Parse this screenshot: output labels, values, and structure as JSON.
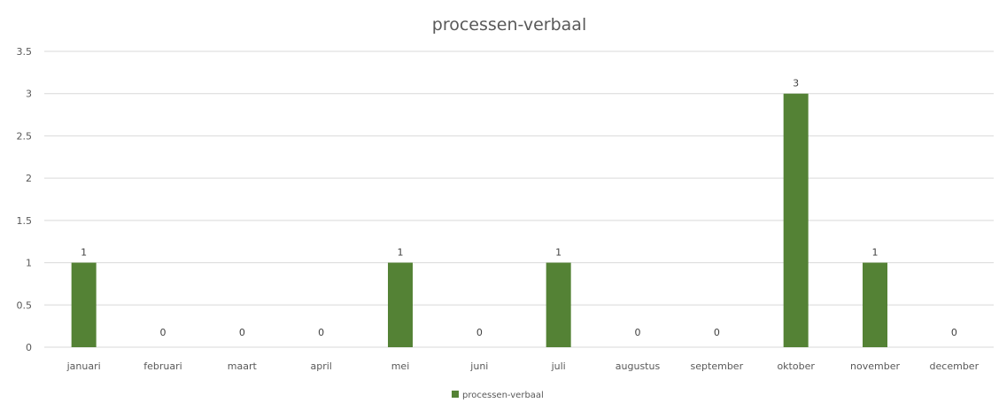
{
  "chart_data": {
    "type": "bar",
    "title": "processen-verbaal",
    "categories": [
      "januari",
      "februari",
      "maart",
      "april",
      "mei",
      "juni",
      "juli",
      "augustus",
      "september",
      "oktober",
      "november",
      "december"
    ],
    "series": [
      {
        "name": "processen-verbaal",
        "color": "#548235",
        "values": [
          1,
          0,
          0,
          0,
          1,
          0,
          1,
          0,
          0,
          3,
          1,
          0
        ]
      }
    ],
    "ylim": [
      0,
      3.5
    ],
    "yticks": [
      "0",
      "0.5",
      "1",
      "1.5",
      "2",
      "2.5",
      "3",
      "3.5"
    ],
    "grid": true,
    "data_labels": true,
    "legend_position": "bottom"
  }
}
